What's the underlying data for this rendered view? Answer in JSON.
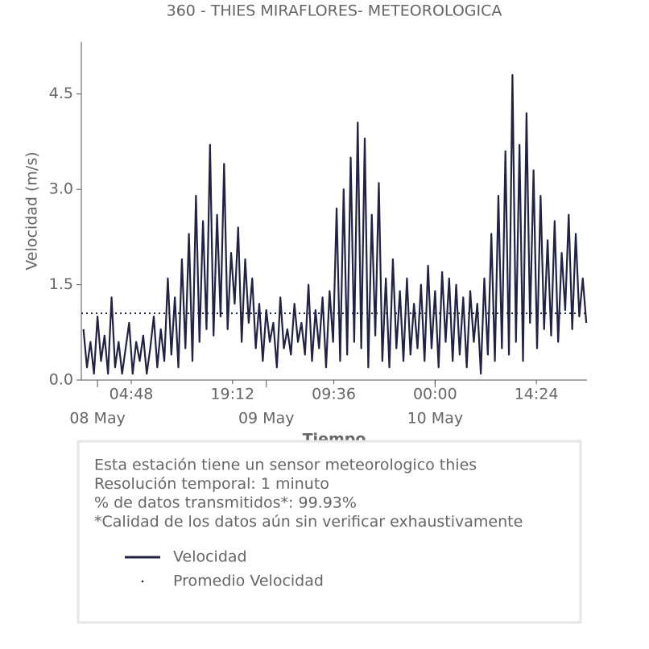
{
  "chart_data": {
    "type": "line",
    "title": "360 - THIES MIRAFLORES- METEOROLOGICA",
    "x_label": "Tiempo",
    "y_label": "Velocidad (m/s)",
    "xlim": [
      -2.3,
      69.6
    ],
    "xticks": [
      {
        "value": 4.8,
        "label": "04:48"
      },
      {
        "value": 19.2,
        "label": "19:12"
      },
      {
        "value": 33.6,
        "label": "09:36"
      },
      {
        "value": 48,
        "label": "00:00"
      },
      {
        "value": 62.4,
        "label": "14:24"
      }
    ],
    "xticks_major": [
      {
        "value": 0,
        "label": "08 May"
      },
      {
        "value": 24,
        "label": "09 May"
      },
      {
        "value": 48,
        "label": "10 May"
      }
    ],
    "ylim": [
      0,
      5.32
    ],
    "yticks": [
      {
        "value": 0,
        "label": "0.0"
      },
      1.5,
      {
        "value": 3,
        "label": "3.0"
      },
      4.5
    ],
    "info": [
      "Esta estación tiene un sensor meteorologico thies",
      "Resolución temporal: 1 minuto",
      "% de datos transmitidos*: 99.93%",
      "*Calidad de los datos aún sin verificar exhaustivamente"
    ],
    "series": [
      {
        "name": "Velocidad",
        "color": "#222244",
        "style": "solid",
        "x": [
          -2,
          -1.5,
          -1,
          -0.5,
          0,
          0.5,
          1,
          1.5,
          2,
          2.5,
          3,
          3.5,
          4,
          4.5,
          5,
          5.5,
          6,
          6.5,
          7,
          7.5,
          8,
          8.5,
          9,
          9.5,
          10,
          10.5,
          11,
          11.5,
          12,
          12.5,
          13,
          13.5,
          14,
          14.5,
          15,
          15.5,
          16,
          16.5,
          17,
          17.5,
          18,
          18.5,
          19,
          19.5,
          20,
          20.5,
          21,
          21.5,
          22,
          22.5,
          23,
          23.5,
          24,
          24.5,
          25,
          25.5,
          26,
          26.5,
          27,
          27.5,
          28,
          28.5,
          29,
          29.5,
          30,
          30.5,
          31,
          31.5,
          32,
          32.5,
          33,
          33.5,
          34,
          34.5,
          35,
          35.5,
          36,
          36.5,
          37,
          37.5,
          38,
          38.5,
          39,
          39.5,
          40,
          40.5,
          41,
          41.5,
          42,
          42.5,
          43,
          43.5,
          44,
          44.5,
          45,
          45.5,
          46,
          46.5,
          47,
          47.5,
          48,
          48.5,
          49,
          49.5,
          50,
          50.5,
          51,
          51.5,
          52,
          52.5,
          53,
          53.5,
          54,
          54.5,
          55,
          55.5,
          56,
          56.5,
          57,
          57.5,
          58,
          58.5,
          59,
          59.5,
          60,
          60.5,
          61,
          61.5,
          62,
          62.5,
          63,
          63.5,
          64,
          64.5,
          65,
          65.5,
          66,
          66.5,
          67,
          67.5,
          68,
          68.5,
          69,
          69.5
        ],
        "values": [
          0.8,
          0.2,
          0.6,
          0.1,
          1.0,
          0.3,
          0.7,
          0.1,
          1.3,
          0.2,
          0.6,
          0.1,
          0.5,
          0.9,
          0.1,
          0.6,
          0.3,
          0.7,
          0.1,
          0.5,
          1.0,
          0.2,
          0.8,
          0.3,
          1.6,
          0.4,
          1.3,
          0.2,
          1.9,
          0.5,
          2.3,
          0.3,
          2.9,
          0.6,
          2.5,
          0.8,
          3.7,
          0.7,
          2.6,
          1.0,
          3.4,
          0.8,
          2.0,
          1.2,
          2.4,
          0.6,
          1.9,
          0.9,
          1.6,
          0.5,
          1.2,
          0.3,
          1.1,
          0.6,
          0.9,
          0.2,
          1.3,
          0.5,
          0.8,
          0.4,
          1.2,
          0.6,
          0.9,
          0.4,
          1.5,
          0.3,
          1.1,
          0.5,
          1.3,
          0.2,
          1.4,
          0.6,
          2.7,
          0.3,
          3.0,
          0.4,
          3.5,
          0.6,
          4.05,
          0.5,
          3.8,
          0.2,
          2.6,
          0.7,
          3.1,
          0.3,
          1.6,
          0.2,
          1.9,
          0.5,
          1.4,
          0.3,
          1.6,
          0.4,
          1.2,
          0.5,
          1.5,
          0.3,
          1.8,
          0.5,
          1.4,
          0.2,
          1.7,
          0.6,
          1.6,
          0.3,
          1.5,
          0.4,
          1.3,
          0.2,
          1.4,
          0.6,
          1.2,
          0.1,
          1.6,
          0.4,
          2.3,
          0.3,
          2.9,
          0.5,
          3.6,
          0.4,
          4.8,
          0.6,
          3.7,
          0.3,
          4.2,
          0.9,
          3.3,
          0.5,
          2.9,
          0.8,
          2.2,
          0.7,
          2.5,
          0.6,
          2.0,
          1.1,
          2.6,
          0.8,
          2.3,
          1.0,
          1.6,
          0.9
        ]
      },
      {
        "name": "Promedio Velocidad",
        "color": "#222244",
        "style": "dotted",
        "x": [
          -2.3,
          69.6
        ],
        "values": [
          1.05,
          1.05
        ]
      }
    ]
  }
}
